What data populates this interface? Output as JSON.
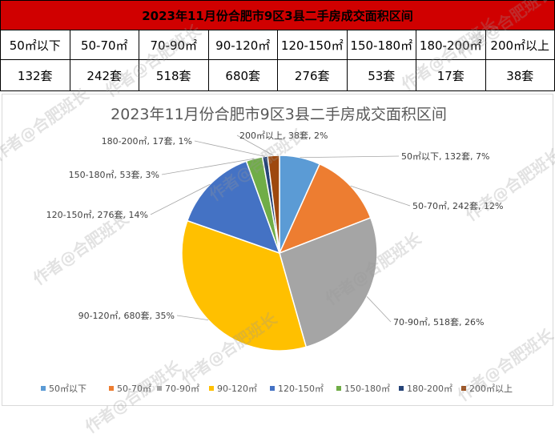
{
  "table": {
    "title": "2023年11月份合肥市9区3县二手房成交面积区间",
    "headers": [
      "50㎡以下",
      "50-70㎡",
      "70-90㎡",
      "90-120㎡",
      "120-150㎡",
      "150-180㎡",
      "180-200㎡",
      "200㎡以上"
    ],
    "values": [
      "132套",
      "242套",
      "518套",
      "680套",
      "276套",
      "53套",
      "17套",
      "38套"
    ]
  },
  "watermark_text": "作者@合肥班长",
  "chart_data": {
    "type": "pie",
    "title": "2023年11月份合肥市9区3县二手房成交面积区间",
    "categories": [
      "50㎡以下",
      "50-70㎡",
      "70-90㎡",
      "90-120㎡",
      "120-150㎡",
      "150-180㎡",
      "180-200㎡",
      "200㎡以上"
    ],
    "values": [
      132,
      242,
      518,
      680,
      276,
      53,
      17,
      38
    ],
    "data_labels": [
      "50㎡以下, 132套, 7%",
      "50-70㎡, 242套, 12%",
      "70-90㎡, 518套, 26%",
      "90-120㎡, 680套, 35%",
      "120-150㎡, 276套, 14%",
      "150-180㎡, 53套, 3%",
      "180-200㎡, 17套, 1%",
      "200㎡以上, 38套, 2%"
    ],
    "colors": [
      "#5b9bd5",
      "#ed7d31",
      "#a5a5a5",
      "#ffc000",
      "#4472c4",
      "#70ad47",
      "#264478",
      "#9e480e"
    ],
    "legend_position": "bottom"
  }
}
